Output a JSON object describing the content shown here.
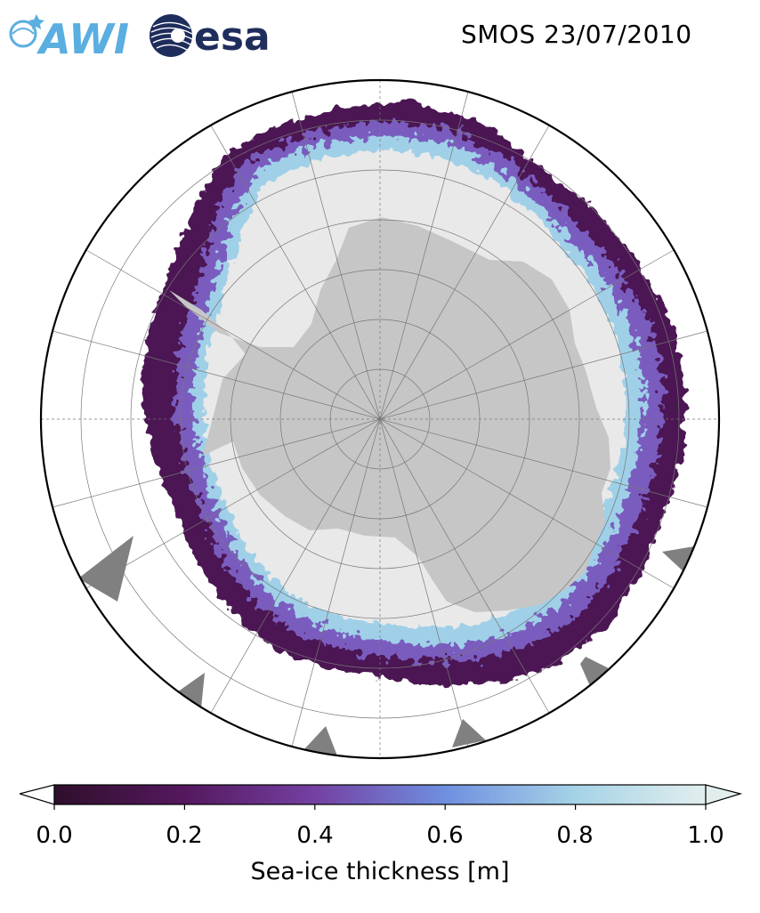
{
  "header": {
    "awi_logo_text": "AWI",
    "esa_logo_text": "esa",
    "title": "SMOS 23/07/2010"
  },
  "map": {
    "projection": "south-polar-stereographic",
    "colors": {
      "land": "#c6c6c6",
      "ocean": "#ffffff",
      "thick_ice": "#e9e9e9",
      "outline": "#000000"
    }
  },
  "colorbar": {
    "label": "Sea-ice thickness [m]",
    "min": 0.0,
    "max": 1.0,
    "ticks": [
      "0.0",
      "0.2",
      "0.4",
      "0.6",
      "0.8",
      "1.0"
    ],
    "colors": [
      "#2e0f2b",
      "#55185f",
      "#7440a2",
      "#6f8fe0",
      "#a5d3e6",
      "#e2eeee"
    ],
    "extend": "both"
  }
}
